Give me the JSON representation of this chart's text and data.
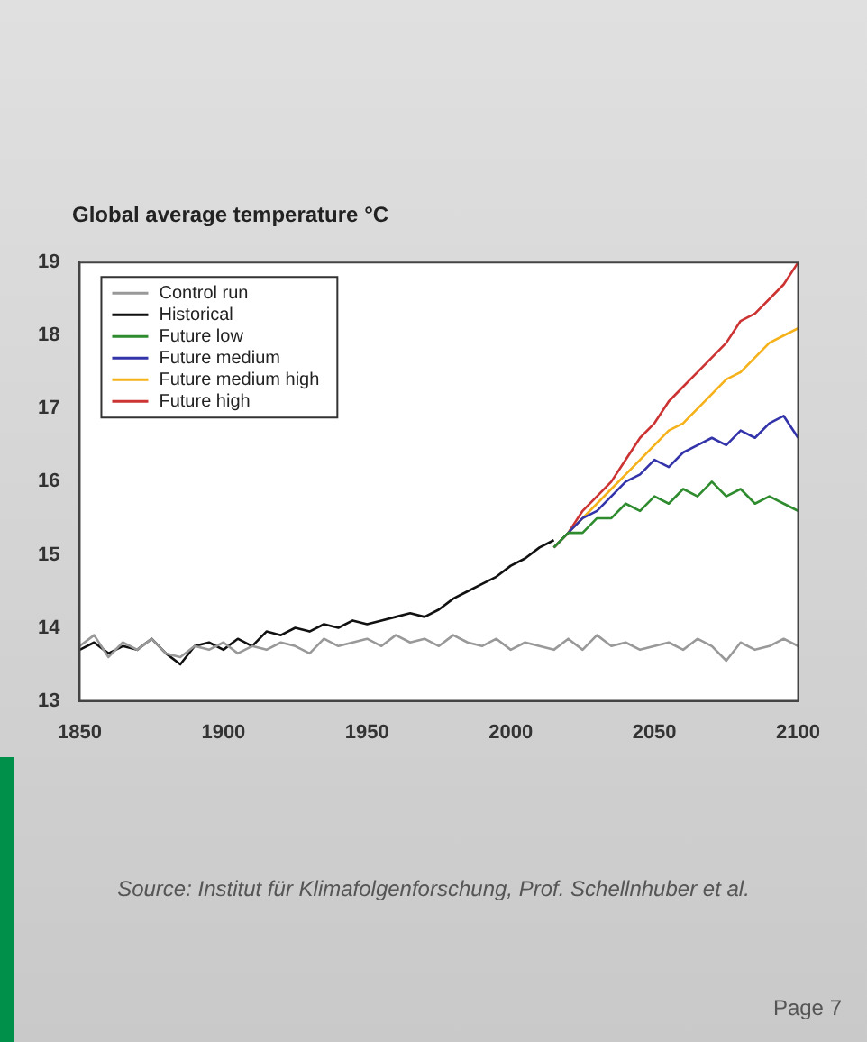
{
  "chart_data": {
    "type": "line",
    "title": "Global average temperature °C",
    "annotations": [
      "Source: Institut für Klimafolgenforschung, Prof. Schellnhuber et al.",
      "Page 7"
    ],
    "xlim": [
      1850,
      2100
    ],
    "xticks": [
      1850,
      1900,
      1950,
      2000,
      2050,
      2100
    ],
    "ylim": [
      13,
      19
    ],
    "yticks": [
      13,
      14,
      15,
      16,
      17,
      18,
      19
    ],
    "grid": false,
    "legend": "top left",
    "marker": "none",
    "line_style": "solid",
    "series": [
      {
        "name": "Control run",
        "color": "#999999",
        "x": [
          1850,
          1855,
          1860,
          1865,
          1870,
          1875,
          1880,
          1885,
          1890,
          1895,
          1900,
          1905,
          1910,
          1915,
          1920,
          1925,
          1930,
          1935,
          1940,
          1945,
          1950,
          1955,
          1960,
          1965,
          1970,
          1975,
          1980,
          1985,
          1990,
          1995,
          2000,
          2005,
          2010,
          2015,
          2020,
          2025,
          2030,
          2035,
          2040,
          2045,
          2050,
          2055,
          2060,
          2065,
          2070,
          2075,
          2080,
          2085,
          2090,
          2095,
          2100
        ],
        "values": [
          13.75,
          13.9,
          13.6,
          13.8,
          13.7,
          13.85,
          13.65,
          13.6,
          13.75,
          13.7,
          13.8,
          13.65,
          13.75,
          13.7,
          13.8,
          13.75,
          13.65,
          13.85,
          13.75,
          13.8,
          13.85,
          13.75,
          13.9,
          13.8,
          13.85,
          13.75,
          13.9,
          13.8,
          13.75,
          13.85,
          13.7,
          13.8,
          13.75,
          13.7,
          13.85,
          13.7,
          13.9,
          13.75,
          13.8,
          13.7,
          13.75,
          13.8,
          13.7,
          13.85,
          13.75,
          13.55,
          13.8,
          13.7,
          13.75,
          13.85,
          13.75
        ]
      },
      {
        "name": "Historical",
        "color": "#111111",
        "x": [
          1850,
          1855,
          1860,
          1865,
          1870,
          1875,
          1880,
          1885,
          1890,
          1895,
          1900,
          1905,
          1910,
          1915,
          1920,
          1925,
          1930,
          1935,
          1940,
          1945,
          1950,
          1955,
          1960,
          1965,
          1970,
          1975,
          1980,
          1985,
          1990,
          1995,
          2000,
          2005,
          2010,
          2015
        ],
        "values": [
          13.7,
          13.8,
          13.65,
          13.75,
          13.7,
          13.85,
          13.65,
          13.5,
          13.75,
          13.8,
          13.7,
          13.85,
          13.75,
          13.95,
          13.9,
          14.0,
          13.95,
          14.05,
          14.0,
          14.1,
          14.05,
          14.1,
          14.15,
          14.2,
          14.15,
          14.25,
          14.4,
          14.5,
          14.6,
          14.7,
          14.85,
          14.95,
          15.1,
          15.2
        ]
      },
      {
        "name": "Future low",
        "color": "#2e8b2e",
        "x": [
          2015,
          2020,
          2025,
          2030,
          2035,
          2040,
          2045,
          2050,
          2055,
          2060,
          2065,
          2070,
          2075,
          2080,
          2085,
          2090,
          2095,
          2100
        ],
        "values": [
          15.1,
          15.3,
          15.3,
          15.5,
          15.5,
          15.7,
          15.6,
          15.8,
          15.7,
          15.9,
          15.8,
          16.0,
          15.8,
          15.9,
          15.7,
          15.8,
          15.7,
          15.6
        ]
      },
      {
        "name": "Future medium",
        "color": "#3333aa",
        "x": [
          2015,
          2020,
          2025,
          2030,
          2035,
          2040,
          2045,
          2050,
          2055,
          2060,
          2065,
          2070,
          2075,
          2080,
          2085,
          2090,
          2095,
          2100
        ],
        "values": [
          15.1,
          15.3,
          15.5,
          15.6,
          15.8,
          16.0,
          16.1,
          16.3,
          16.2,
          16.4,
          16.5,
          16.6,
          16.5,
          16.7,
          16.6,
          16.8,
          16.9,
          16.6
        ]
      },
      {
        "name": "Future medium high",
        "color": "#f5b21a",
        "x": [
          2015,
          2020,
          2025,
          2030,
          2035,
          2040,
          2045,
          2050,
          2055,
          2060,
          2065,
          2070,
          2075,
          2080,
          2085,
          2090,
          2095,
          2100
        ],
        "values": [
          15.1,
          15.3,
          15.5,
          15.7,
          15.9,
          16.1,
          16.3,
          16.5,
          16.7,
          16.8,
          17.0,
          17.2,
          17.4,
          17.5,
          17.7,
          17.9,
          18.0,
          18.1
        ]
      },
      {
        "name": "Future high",
        "color": "#cc3333",
        "x": [
          2015,
          2020,
          2025,
          2030,
          2035,
          2040,
          2045,
          2050,
          2055,
          2060,
          2065,
          2070,
          2075,
          2080,
          2085,
          2090,
          2095,
          2100
        ],
        "values": [
          15.1,
          15.3,
          15.6,
          15.8,
          16.0,
          16.3,
          16.6,
          16.8,
          17.1,
          17.3,
          17.5,
          17.7,
          17.9,
          18.2,
          18.3,
          18.5,
          18.7,
          19.0
        ]
      }
    ]
  }
}
